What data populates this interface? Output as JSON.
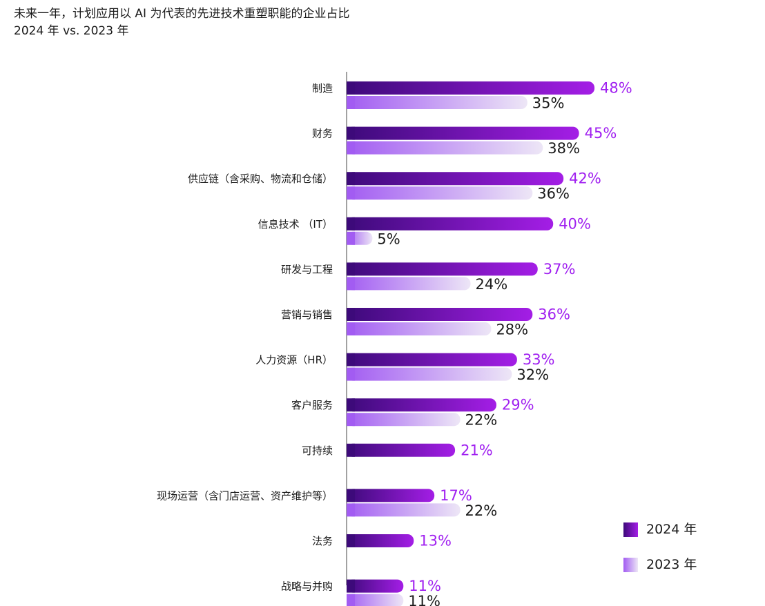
{
  "title": "未来一年，计划应用以 AI 为代表的先进技术重塑职能的企业占比",
  "subtitle": "2024 年 vs. 2023 年",
  "colors": {
    "series_2024_start": "#3d0a7a",
    "series_2024_end": "#a41ee6",
    "series_2023_start": "#a25cf2",
    "series_2023_end": "#ede6f6",
    "label_2024": "#a020f0",
    "label_2023": "#1a1a1a",
    "axis": "#444444"
  },
  "chart_data": {
    "type": "bar",
    "orientation": "horizontal",
    "categories": [
      "制造",
      "财务",
      "供应链（含采购、物流和仓储）",
      "信息技术 （IT）",
      "研发与工程",
      "营销与销售",
      "人力资源（HR）",
      "客户服务",
      "可持续",
      "现场运营（含门店运营、资产维护等）",
      "法务",
      "战略与并购"
    ],
    "series": [
      {
        "name": "2024 年",
        "values": [
          48,
          45,
          42,
          40,
          37,
          36,
          33,
          29,
          21,
          17,
          13,
          11
        ],
        "labels": [
          "48%",
          "45%",
          "42%",
          "40%",
          "37%",
          "36%",
          "33%",
          "29%",
          "21%",
          "17%",
          "13%",
          "11%"
        ]
      },
      {
        "name": "2023 年",
        "values": [
          35,
          38,
          36,
          5,
          24,
          28,
          32,
          22,
          null,
          22,
          null,
          11
        ],
        "labels": [
          "35%",
          "38%",
          "36%",
          "5%",
          "24%",
          "28%",
          "32%",
          "22%",
          "",
          "22%",
          "",
          "11%"
        ]
      }
    ],
    "xlim": [
      0,
      50
    ],
    "legend_position": "bottom-right",
    "grid": false
  }
}
